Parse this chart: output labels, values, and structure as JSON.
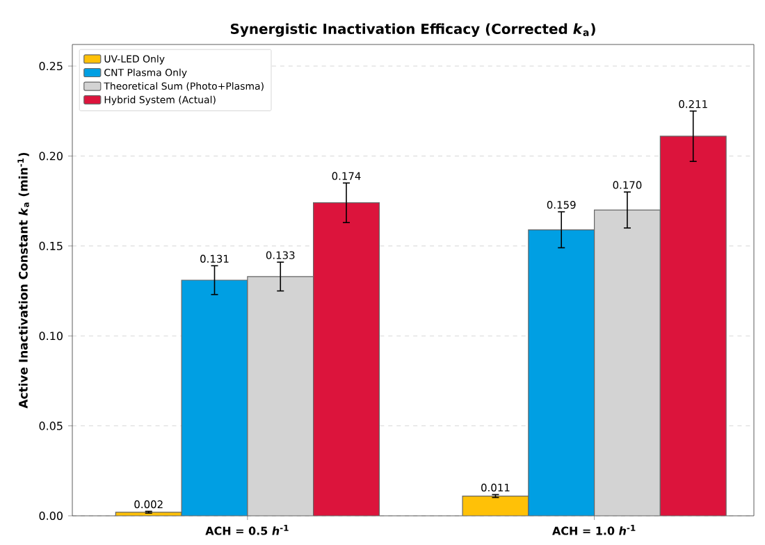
{
  "chart_data": {
    "type": "bar",
    "title": "Synergistic Inactivation Efficacy (Corrected *k*$_{a}$)",
    "ylabel": "Active Inactivation Constant *k*$_{a}$ (min$^{-1}$)",
    "categories": [
      "ACH = 0.5 *h*$^{-1}$",
      "ACH = 1.0 *h*$^{-1}$"
    ],
    "series": [
      {
        "name": "UV-LED Only",
        "color": "#ffc107",
        "values": [
          0.002,
          0.011
        ],
        "errors": [
          0.0005,
          0.0008
        ],
        "value_labels": [
          "0.002",
          "0.011"
        ]
      },
      {
        "name": "CNT Plasma Only",
        "color": "#009fe3",
        "values": [
          0.131,
          0.159
        ],
        "errors": [
          0.008,
          0.01
        ],
        "value_labels": [
          "0.131",
          "0.159"
        ]
      },
      {
        "name": "Theoretical Sum (Photo+Plasma)",
        "color": "#d3d3d3",
        "values": [
          0.133,
          0.17
        ],
        "errors": [
          0.008,
          0.01
        ],
        "value_labels": [
          "0.133",
          "0.170"
        ]
      },
      {
        "name": "Hybrid System (Actual)",
        "color": "#dc143c",
        "values": [
          0.174,
          0.211
        ],
        "errors": [
          0.011,
          0.014
        ],
        "value_labels": [
          "0.174",
          "0.211"
        ]
      }
    ],
    "ylim": [
      0,
      0.262
    ],
    "yticks": [
      {
        "value": 0,
        "label": "0.00"
      },
      {
        "value": 0.05,
        "label": "0.05"
      },
      {
        "value": 0.1,
        "label": "0.10"
      },
      {
        "value": 0.15,
        "label": "0.15"
      },
      {
        "value": 0.2,
        "label": "0.20"
      },
      {
        "value": 0.25,
        "label": "0.25"
      }
    ],
    "grid": "y",
    "legend": "top left"
  }
}
